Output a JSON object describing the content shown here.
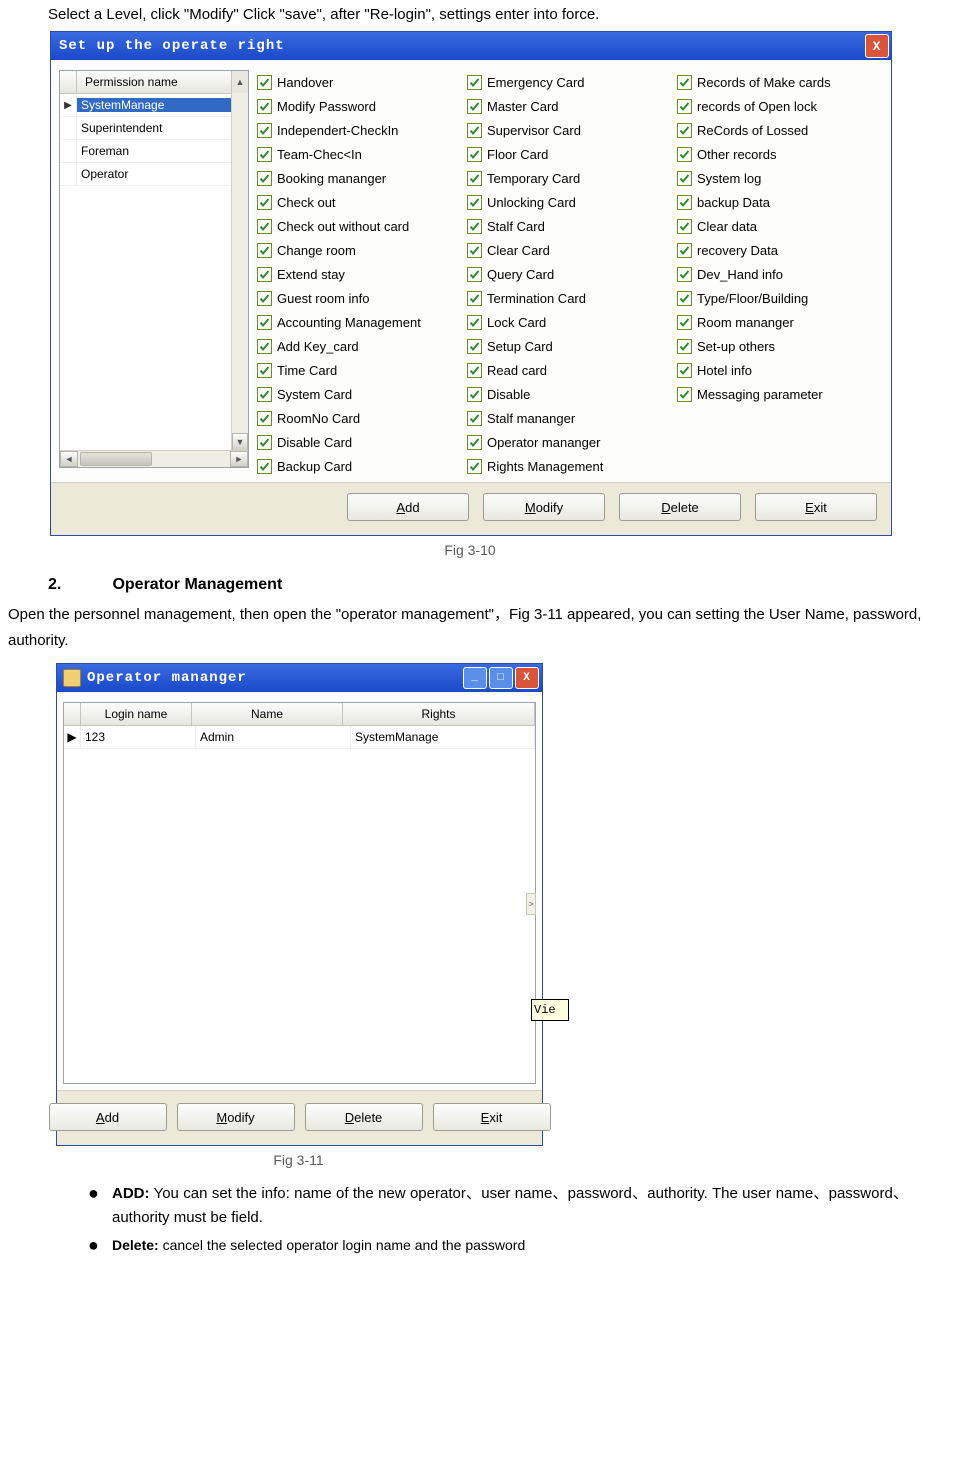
{
  "intro_text": "Select a Level, click \"Modify\" Click \"save\", after \"Re-login\", settings enter into force.",
  "win1": {
    "title": "Set up the operate right",
    "close_label": "X",
    "perm_header": "Permission name",
    "perm_rows": [
      "SystemManage",
      "Superintendent",
      "Foreman",
      "Operator"
    ],
    "perm_selected_index": 0,
    "checks_col1": [
      "Handover",
      "Modify Password",
      "Independert-CheckIn",
      "Team-Chec<In",
      "Booking mananger",
      "Check out",
      "Check out without card",
      "Change room",
      "Extend stay",
      "Guest room info",
      "Accounting Management",
      "Add Key_card",
      "Time Card",
      "System Card",
      "RoomNo Card",
      "Disable Card",
      "Backup Card"
    ],
    "checks_col2": [
      "Emergency Card",
      "Master Card",
      "Supervisor Card",
      "Floor Card",
      "Temporary Card",
      "Unlocking Card",
      "Stalf Card",
      "Clear Card",
      "Query Card",
      "Termination Card",
      "Lock Card",
      "Setup Card",
      "Read card",
      "Disable",
      "Stalf mananger",
      "Operator mananger",
      "Rights Management"
    ],
    "checks_col3": [
      "Records of Make cards",
      "records of Open lock",
      "ReCords of Lossed",
      "Other records",
      "System log",
      "backup Data",
      "Clear data",
      "recovery Data",
      "Dev_Hand info",
      "Type/Floor/Building",
      "Room mananger",
      "Set-up others",
      "Hotel info",
      "Messaging parameter"
    ],
    "buttons": {
      "add": "Add",
      "modify": "Modify",
      "delete": "Delete",
      "exit": "Exit"
    },
    "checkbox_color": "#6b8e23",
    "checkmark_color": "#2e8b2e"
  },
  "fig1_caption": "Fig 3-10",
  "section2": {
    "num": "2.",
    "title": "Operator Management",
    "para": "Open the personnel management, then open the \"operator management\"，Fig 3-11 appeared, you can setting the User Name, password, authority."
  },
  "win2": {
    "title": "Operator mananger",
    "columns": {
      "login": "Login name",
      "name": "Name",
      "rights": "Rights"
    },
    "row": {
      "login": "123",
      "name": "Admin",
      "rights": "SystemManage"
    },
    "sidepull": ">",
    "viebox": "Vie",
    "buttons": {
      "add": "Add",
      "modify": "Modify",
      "delete": "Delete",
      "exit": "Exit"
    }
  },
  "fig2_caption": "Fig 3-11",
  "bullets": {
    "add_label": "ADD:",
    "add_text": " You can set the info: name of the new operator、user name、password、authority. The user name、password、authority must be field.",
    "delete_label": "Delete:",
    "delete_text": " cancel the selected operator login name and the password"
  }
}
